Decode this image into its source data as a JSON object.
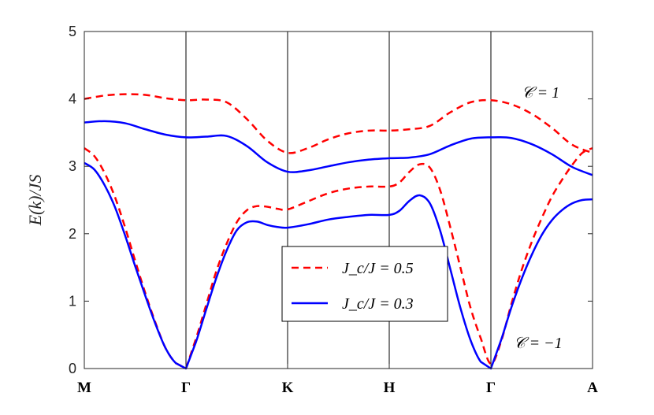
{
  "chart_data": {
    "type": "line",
    "title": "",
    "xlabel": "",
    "ylabel": "E(k)/JS",
    "ylim": [
      0,
      5
    ],
    "yticks": [
      "0",
      "1",
      "2",
      "3",
      "4",
      "5"
    ],
    "x_tick_labels": [
      "M",
      "Γ",
      "K",
      "H",
      "Γ",
      "A"
    ],
    "x_tick_positions": [
      0,
      1,
      2,
      3,
      4,
      5
    ],
    "grid": false,
    "vertical_lines_at": [
      1,
      2,
      3,
      4
    ],
    "legend": {
      "placement": "center",
      "entries": [
        "J_c/J = 0.5",
        "J_c/J = 0.3"
      ]
    },
    "annotations": [
      "𝒞 = 1",
      "𝒞 = −1"
    ],
    "series": [
      {
        "name": "J_c/J = 0.5",
        "color": "#ff0000",
        "dash": "dashed",
        "band": "upper",
        "x": [
          0,
          0.2,
          0.4,
          0.6,
          0.8,
          1.0,
          1.2,
          1.4,
          1.6,
          1.8,
          2.0,
          2.2,
          2.4,
          2.6,
          2.8,
          3.0,
          3.2,
          3.4,
          3.6,
          3.8,
          4.0,
          4.2,
          4.4,
          4.6,
          4.8,
          5.0
        ],
        "y": [
          4.0,
          4.05,
          4.07,
          4.06,
          4.01,
          3.98,
          3.99,
          3.95,
          3.7,
          3.38,
          3.2,
          3.27,
          3.4,
          3.49,
          3.53,
          3.53,
          3.55,
          3.6,
          3.8,
          3.95,
          3.98,
          3.92,
          3.78,
          3.57,
          3.32,
          3.2
        ]
      },
      {
        "name": "J_c/J = 0.5",
        "color": "#ff0000",
        "dash": "dashed",
        "band": "lower",
        "x": [
          0,
          0.1,
          0.2,
          0.3,
          0.4,
          0.5,
          0.6,
          0.7,
          0.8,
          0.9,
          1.0,
          1.1,
          1.2,
          1.3,
          1.4,
          1.5,
          1.6,
          1.7,
          1.8,
          1.9,
          2.0,
          2.2,
          2.4,
          2.6,
          2.8,
          3.0,
          3.1,
          3.2,
          3.3,
          3.4,
          3.5,
          3.6,
          3.7,
          3.8,
          3.9,
          4.0,
          4.1,
          4.2,
          4.3,
          4.4,
          4.5,
          4.6,
          4.7,
          4.8,
          4.9,
          5.0
        ],
        "y": [
          3.27,
          3.15,
          2.9,
          2.55,
          2.1,
          1.6,
          1.12,
          0.68,
          0.3,
          0.08,
          0.0,
          0.45,
          0.95,
          1.45,
          1.85,
          2.17,
          2.35,
          2.41,
          2.4,
          2.37,
          2.36,
          2.48,
          2.6,
          2.67,
          2.7,
          2.7,
          2.76,
          2.92,
          3.03,
          2.98,
          2.65,
          2.1,
          1.5,
          0.9,
          0.45,
          0.07,
          0.4,
          0.95,
          1.45,
          1.87,
          2.23,
          2.55,
          2.8,
          3.02,
          3.2,
          3.27
        ]
      },
      {
        "name": "J_c/J = 0.3",
        "color": "#0000ff",
        "dash": "solid",
        "band": "upper",
        "x": [
          0,
          0.2,
          0.4,
          0.6,
          0.8,
          1.0,
          1.2,
          1.4,
          1.6,
          1.8,
          2.0,
          2.2,
          2.4,
          2.6,
          2.8,
          3.0,
          3.2,
          3.4,
          3.6,
          3.8,
          4.0,
          4.2,
          4.4,
          4.6,
          4.8,
          5.0
        ],
        "y": [
          3.65,
          3.67,
          3.64,
          3.55,
          3.47,
          3.43,
          3.44,
          3.45,
          3.3,
          3.06,
          2.92,
          2.94,
          3.0,
          3.06,
          3.1,
          3.12,
          3.13,
          3.18,
          3.31,
          3.41,
          3.43,
          3.42,
          3.33,
          3.18,
          2.99,
          2.87
        ]
      },
      {
        "name": "J_c/J = 0.3",
        "color": "#0000ff",
        "dash": "solid",
        "band": "lower",
        "x": [
          0,
          0.1,
          0.2,
          0.3,
          0.4,
          0.5,
          0.6,
          0.7,
          0.8,
          0.9,
          1.0,
          1.1,
          1.2,
          1.3,
          1.4,
          1.5,
          1.6,
          1.7,
          1.8,
          1.9,
          2.0,
          2.2,
          2.4,
          2.6,
          2.8,
          3.0,
          3.1,
          3.2,
          3.3,
          3.4,
          3.5,
          3.6,
          3.7,
          3.8,
          3.9,
          4.0,
          4.1,
          4.2,
          4.3,
          4.4,
          4.5,
          4.6,
          4.7,
          4.8,
          4.9,
          5.0
        ],
        "y": [
          3.05,
          2.95,
          2.72,
          2.4,
          1.98,
          1.52,
          1.08,
          0.66,
          0.3,
          0.08,
          0.0,
          0.4,
          0.88,
          1.35,
          1.75,
          2.05,
          2.17,
          2.18,
          2.13,
          2.1,
          2.09,
          2.14,
          2.21,
          2.25,
          2.28,
          2.28,
          2.34,
          2.49,
          2.57,
          2.45,
          2.05,
          1.48,
          0.9,
          0.42,
          0.1,
          0.0,
          0.42,
          0.9,
          1.32,
          1.68,
          1.98,
          2.2,
          2.35,
          2.45,
          2.5,
          2.51
        ]
      }
    ]
  }
}
